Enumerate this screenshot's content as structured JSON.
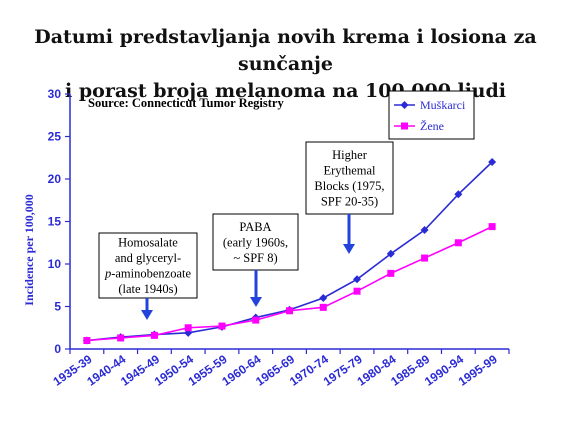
{
  "title_line1": "Datumi predstavljanja novih krema i losiona za sunčanje",
  "title_line2": "i porast broja melanoma na 100.000 ljudi",
  "chart_data": {
    "type": "line",
    "source_note": "Source: Connecticut Tumor Registry",
    "ylabel": "Incidence per 100,000",
    "xlabel": "",
    "ylim": [
      0,
      30
    ],
    "yticks": [
      0,
      5,
      10,
      15,
      20,
      25,
      30
    ],
    "grid": false,
    "legend_position": "top-right",
    "categories": [
      "1935-39",
      "1940-44",
      "1945-49",
      "1950-54",
      "1955-59",
      "1960-64",
      "1965-69",
      "1970-74",
      "1975-79",
      "1980-84",
      "1985-89",
      "1990-94",
      "1995-99"
    ],
    "series": [
      {
        "name": "Muškarci",
        "color": "#2b2bd6",
        "marker": "diamond",
        "values": [
          1.0,
          1.4,
          1.7,
          1.9,
          2.6,
          3.7,
          4.6,
          6.0,
          8.2,
          11.2,
          14.0,
          18.2,
          22.0
        ]
      },
      {
        "name": "Žene",
        "color": "#ff00ff",
        "marker": "square",
        "values": [
          1.0,
          1.3,
          1.6,
          2.5,
          2.7,
          3.4,
          4.5,
          4.9,
          6.8,
          8.9,
          10.7,
          12.5,
          14.4
        ]
      }
    ],
    "annotations": [
      {
        "lines": [
          "Homosalate",
          "and glyceryl-",
          "p-aminobenzoate",
          "(late 1940s)"
        ],
        "arrow_color": "#2244dd"
      },
      {
        "lines": [
          "PABA",
          "(early 1960s,",
          "~ SPF 8)"
        ],
        "arrow_color": "#2244dd"
      },
      {
        "lines": [
          "Higher",
          "Erythemal",
          "Blocks (1975,",
          "SPF 20-35)"
        ],
        "arrow_color": "#2244dd"
      }
    ]
  }
}
